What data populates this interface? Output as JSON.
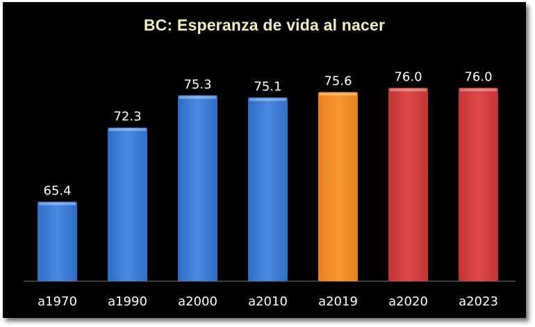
{
  "chart_data": {
    "type": "bar",
    "title": "BC: Esperanza de vida al nacer",
    "categories": [
      "a1970",
      "a1990",
      "a2000",
      "a2010",
      "a2019",
      "a2020",
      "a2023"
    ],
    "values": [
      65.4,
      72.3,
      75.3,
      75.1,
      75.6,
      76.0,
      76.0
    ],
    "value_labels": [
      "65.4",
      "72.3",
      "75.3",
      "75.1",
      "75.6",
      "76.0",
      "76.0"
    ],
    "bar_colors": [
      "#3f7ed8",
      "#3f7ed8",
      "#3f7ed8",
      "#3f7ed8",
      "#f08a20",
      "#d43c3c",
      "#d43c3c"
    ],
    "xlabel": "",
    "ylabel": "",
    "ylim": [
      58.0,
      77.0
    ],
    "grid": false,
    "legend": "none",
    "background": "#000000"
  }
}
